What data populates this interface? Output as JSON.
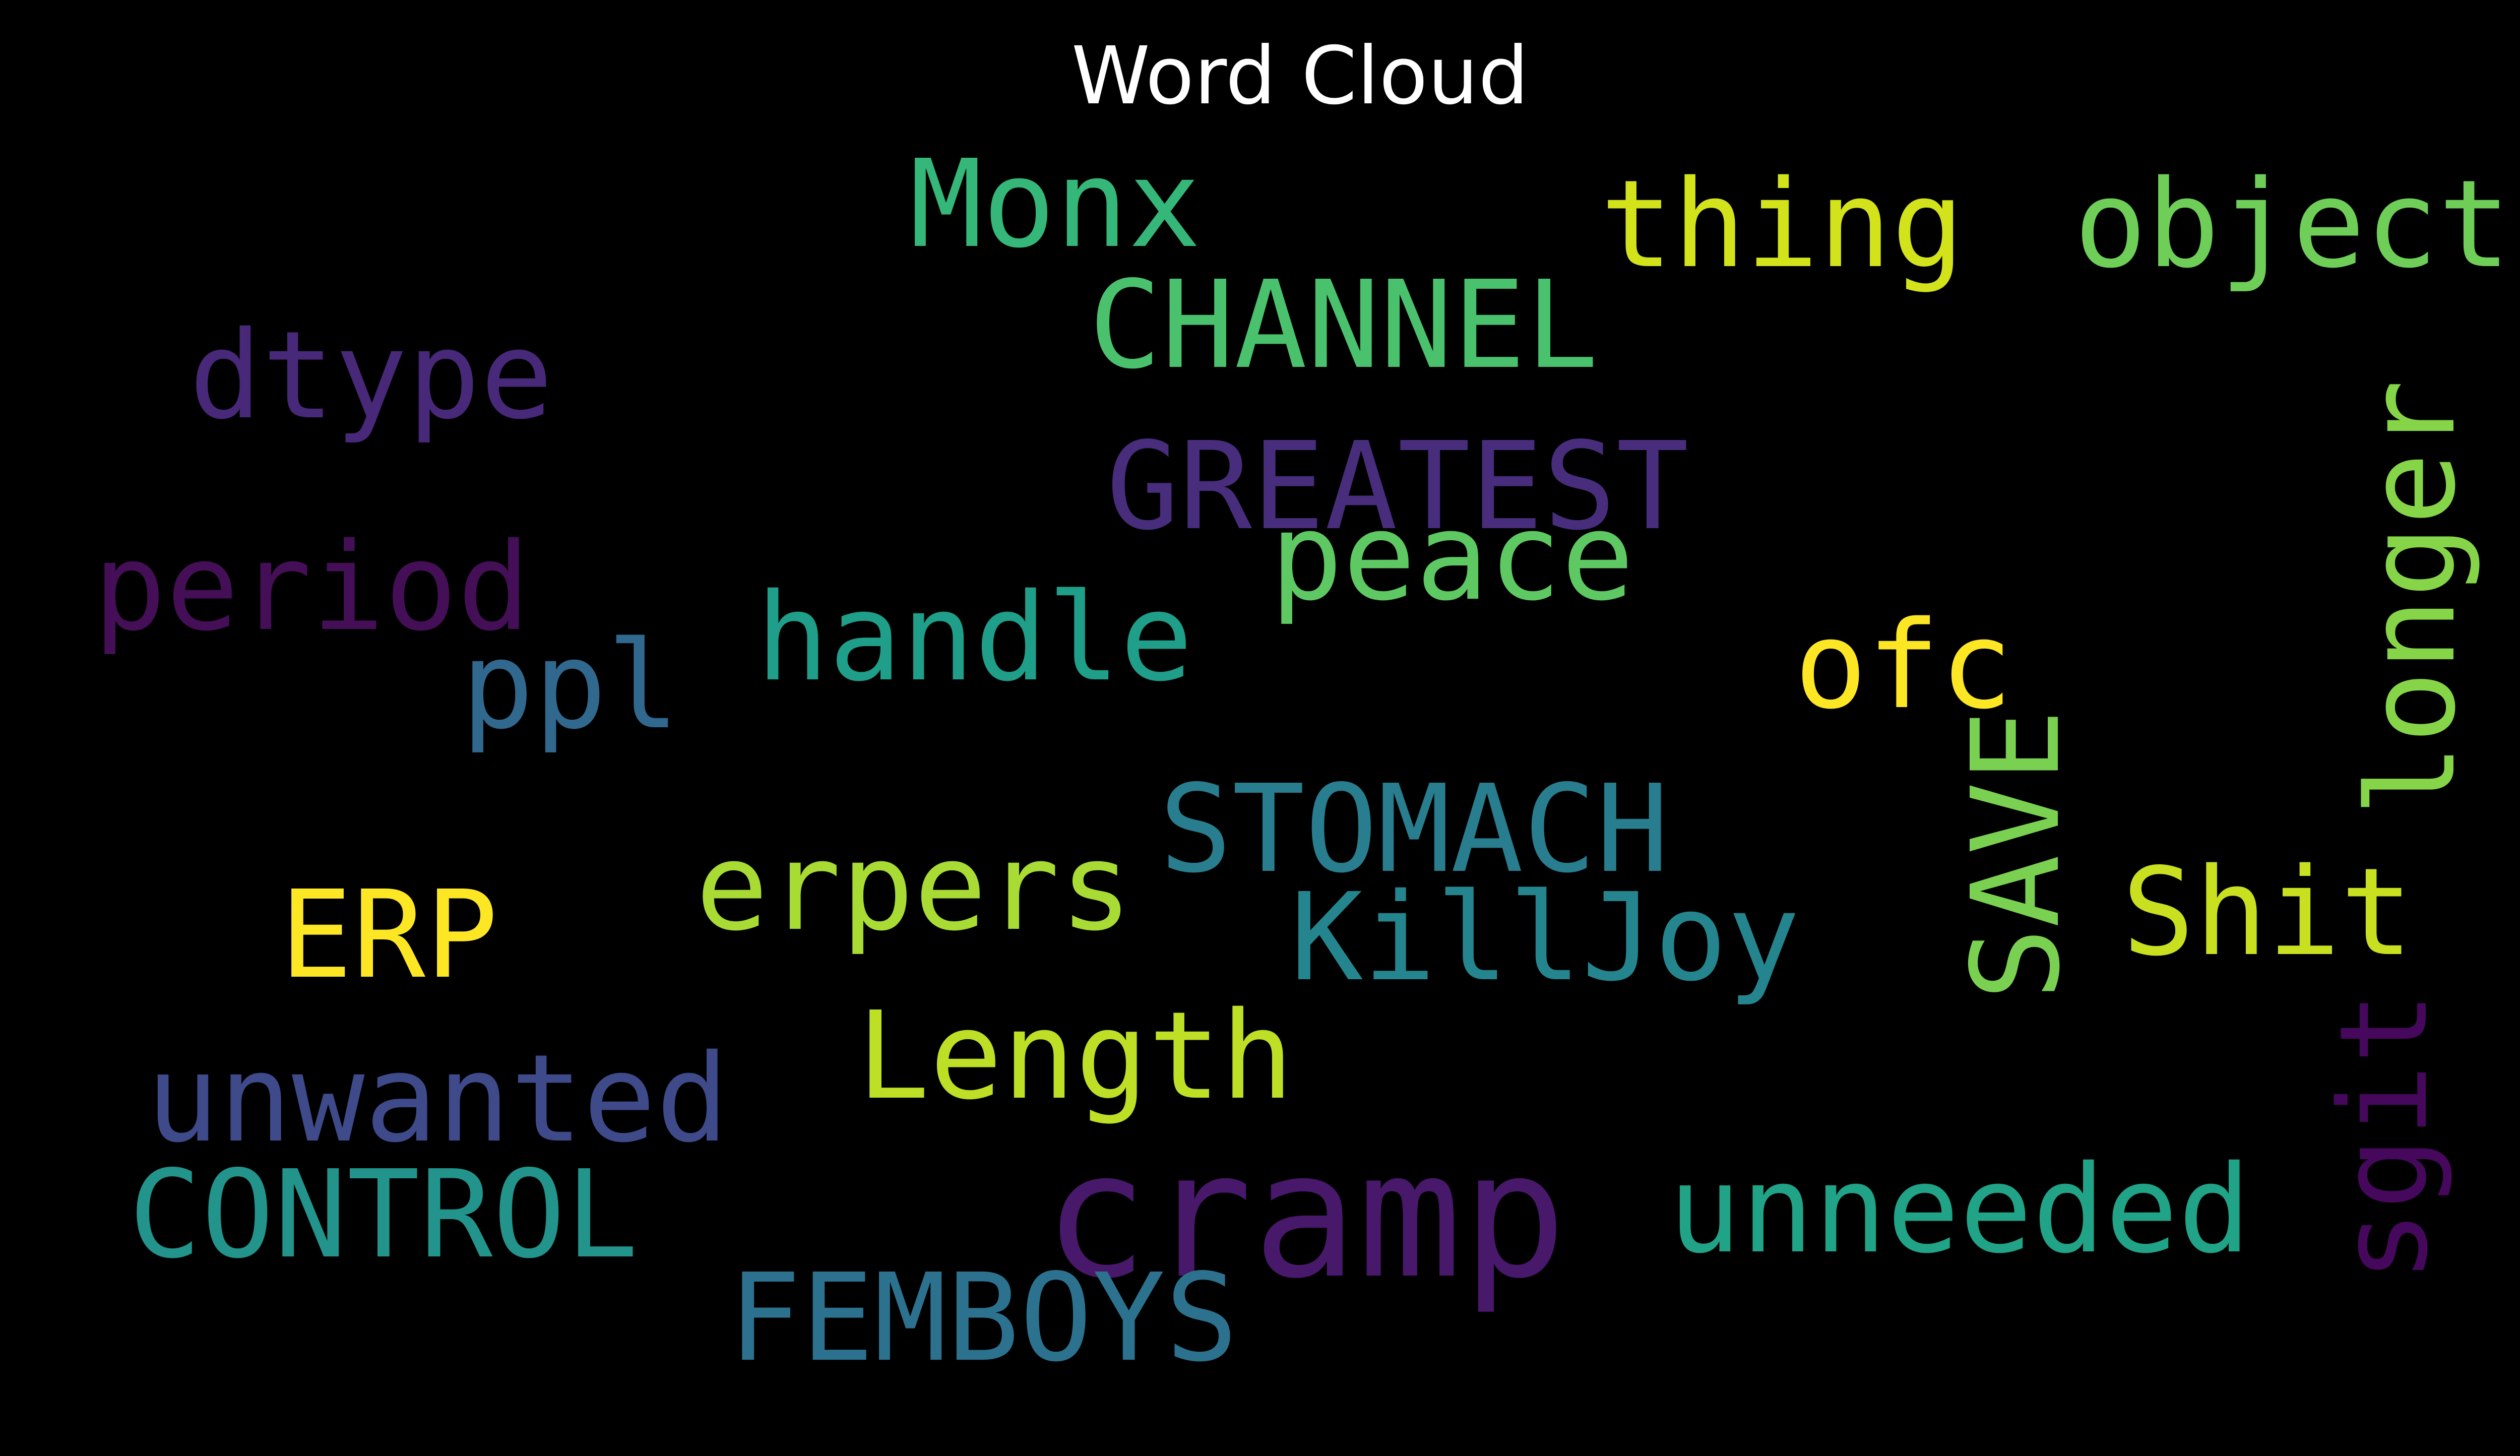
{
  "title": "Word Cloud",
  "background_color": "#000000",
  "words": [
    {
      "text": "cramp",
      "color": "#48186a",
      "rotated": false
    },
    {
      "text": "FEMBOYS",
      "color": "#2c728e",
      "rotated": false
    },
    {
      "text": "Monx",
      "color": "#35b779",
      "rotated": false
    },
    {
      "text": "thing",
      "color": "#d2e21b",
      "rotated": false
    },
    {
      "text": "object",
      "color": "#6ece58",
      "rotated": false
    },
    {
      "text": "CHANNEL",
      "color": "#4ac16d",
      "rotated": false
    },
    {
      "text": "dtype",
      "color": "#482878",
      "rotated": false
    },
    {
      "text": "GREATEST",
      "color": "#472d7b",
      "rotated": false
    },
    {
      "text": "peace",
      "color": "#5ec962",
      "rotated": false
    },
    {
      "text": "period",
      "color": "#440f56",
      "rotated": false
    },
    {
      "text": "handle",
      "color": "#1f9e89",
      "rotated": false
    },
    {
      "text": "ppl",
      "color": "#31688e",
      "rotated": false
    },
    {
      "text": "ofc",
      "color": "#fde725",
      "rotated": false
    },
    {
      "text": "longer",
      "color": "#86d549",
      "rotated": true
    },
    {
      "text": "SAVE",
      "color": "#7ad151",
      "rotated": true
    },
    {
      "text": "STOMACH",
      "color": "#287d8e",
      "rotated": false
    },
    {
      "text": "erpers",
      "color": "#a8db34",
      "rotated": false
    },
    {
      "text": "ERP",
      "color": "#fde725",
      "rotated": false
    },
    {
      "text": "KillJoy",
      "color": "#25858e",
      "rotated": false
    },
    {
      "text": "Shit",
      "color": "#c8e020",
      "rotated": false
    },
    {
      "text": "Length",
      "color": "#bddf26",
      "rotated": false
    },
    {
      "text": "sgit",
      "color": "#46085c",
      "rotated": true
    },
    {
      "text": "unwanted",
      "color": "#3e4a89",
      "rotated": false
    },
    {
      "text": "CONTROL",
      "color": "#22948b",
      "rotated": false
    },
    {
      "text": "unneeded",
      "color": "#20a386",
      "rotated": false
    }
  ]
}
